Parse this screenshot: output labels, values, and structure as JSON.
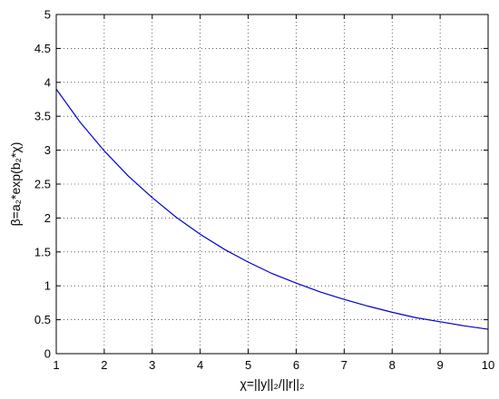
{
  "chart_data": {
    "type": "line",
    "title": "",
    "xlabel": "χ=||y||₂/||r||₂",
    "ylabel": "β=a₂*exp(b₂*χ)",
    "xlim": [
      1,
      10
    ],
    "ylim": [
      0,
      5
    ],
    "x_ticks": [
      "1",
      "2",
      "3",
      "4",
      "5",
      "6",
      "7",
      "8",
      "9",
      "10"
    ],
    "y_ticks": [
      "0",
      "0.5",
      "1",
      "1.5",
      "2",
      "2.5",
      "3",
      "3.5",
      "4",
      "4.5",
      "5"
    ],
    "grid": true,
    "series": [
      {
        "color": "#0000cc",
        "x": [
          1,
          1.5,
          2,
          2.5,
          3,
          3.5,
          4,
          4.5,
          5,
          5.5,
          6,
          6.5,
          7,
          7.5,
          8,
          8.5,
          9,
          9.5,
          10
        ],
        "y": [
          3.9,
          3.41,
          2.99,
          2.62,
          2.3,
          2.01,
          1.76,
          1.54,
          1.35,
          1.18,
          1.04,
          0.91,
          0.8,
          0.7,
          0.61,
          0.53,
          0.47,
          0.41,
          0.36
        ]
      }
    ]
  }
}
